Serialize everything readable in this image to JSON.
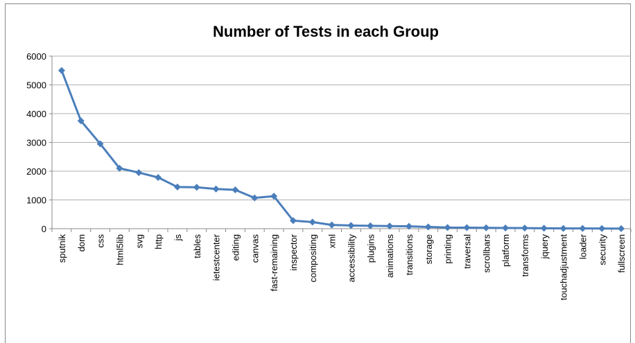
{
  "chart_data": {
    "type": "line",
    "title": "Number of Tests in each Group",
    "categories": [
      "sputnik",
      "dom",
      "css",
      "html5lib",
      "svg",
      "http",
      "js",
      "tables",
      "ietestcenter",
      "editing",
      "canvas",
      "fast-remaining",
      "inspector",
      "compositing",
      "xml",
      "accessibility",
      "plugins",
      "animations",
      "transitions",
      "storage",
      "printing",
      "traversal",
      "scrollbars",
      "platform",
      "transforms",
      "jquery",
      "touchadjustment",
      "loader",
      "security",
      "fullscreen"
    ],
    "values": [
      5500,
      3750,
      2950,
      2100,
      1950,
      1780,
      1450,
      1440,
      1380,
      1350,
      1070,
      1130,
      280,
      230,
      130,
      110,
      100,
      90,
      80,
      60,
      40,
      35,
      30,
      25,
      20,
      15,
      10,
      8,
      5,
      3
    ],
    "color": "#4a7ebb",
    "ylim": [
      0,
      6000
    ],
    "yticks": [
      0,
      1000,
      2000,
      3000,
      4000,
      5000,
      6000
    ],
    "grid": true
  }
}
